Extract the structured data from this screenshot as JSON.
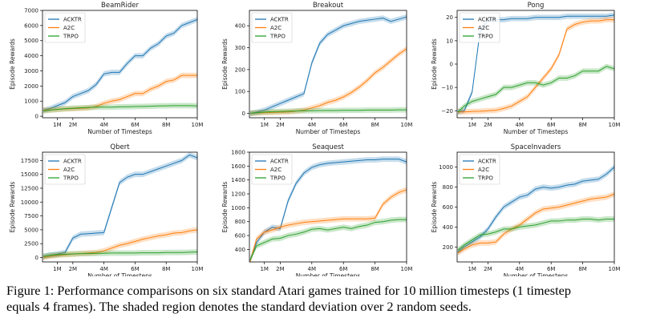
{
  "colors": {
    "ACKTR": "#1f77b4",
    "A2C": "#ff7f0e",
    "TRPO": "#2ca02c"
  },
  "caption": {
    "line1": "Figure 1: Performance comparisons on six standard Atari games trained for 10 million timesteps (1 timestep",
    "line2": "equals 4 frames). The shaded region denotes the standard deviation over 2 random seeds."
  },
  "chart_data": [
    {
      "type": "line",
      "title": "BeamRider",
      "xlabel": "Number of Timesteps",
      "ylabel": "Episode Rewards",
      "legend": "top-left",
      "grid": false,
      "xlim": [
        0.05,
        10
      ],
      "ylim": [
        -100,
        7000
      ],
      "xticks": [
        {
          "v": 1,
          "label": "1M"
        },
        {
          "v": 2,
          "label": "2M"
        },
        {
          "v": 4,
          "label": "4M"
        },
        {
          "v": 6,
          "label": "6M"
        },
        {
          "v": 8,
          "label": "8M"
        },
        {
          "v": 10,
          "label": "10M"
        }
      ],
      "yticks": [
        {
          "v": 0,
          "label": "0"
        },
        {
          "v": 1000,
          "label": "1000"
        },
        {
          "v": 2000,
          "label": "2000"
        },
        {
          "v": 3000,
          "label": "3000"
        },
        {
          "v": 4000,
          "label": "4000"
        },
        {
          "v": 5000,
          "label": "5000"
        },
        {
          "v": 6000,
          "label": "6000"
        },
        {
          "v": 7000,
          "label": "7000"
        }
      ],
      "x": [
        0.1,
        0.5,
        1,
        1.5,
        2,
        2.5,
        3,
        3.5,
        4,
        4.5,
        5,
        5.5,
        6,
        6.5,
        7,
        7.5,
        8,
        8.5,
        9,
        9.5,
        10
      ],
      "series": [
        {
          "name": "ACKTR",
          "values": [
            400,
            500,
            700,
            900,
            1300,
            1500,
            1700,
            2100,
            2800,
            2900,
            2900,
            3500,
            4000,
            4000,
            4500,
            4800,
            5300,
            5500,
            6000,
            6200,
            6400
          ]
        },
        {
          "name": "A2C",
          "values": [
            400,
            420,
            450,
            480,
            500,
            520,
            550,
            650,
            850,
            1000,
            1100,
            1300,
            1500,
            1500,
            1800,
            2000,
            2300,
            2400,
            2700,
            2700,
            2700
          ]
        },
        {
          "name": "TRPO",
          "values": [
            350,
            400,
            450,
            500,
            530,
            560,
            580,
            600,
            600,
            600,
            620,
            630,
            640,
            650,
            660,
            680,
            690,
            700,
            700,
            700,
            680
          ]
        }
      ]
    },
    {
      "type": "line",
      "title": "Breakout",
      "xlabel": "Number of Timesteps",
      "ylabel": "Episode Rewards",
      "legend": "top-left",
      "grid": false,
      "xlim": [
        0.05,
        10
      ],
      "ylim": [
        -20,
        470
      ],
      "xticks": [
        {
          "v": 1,
          "label": "1M"
        },
        {
          "v": 2,
          "label": "2M"
        },
        {
          "v": 4,
          "label": "4M"
        },
        {
          "v": 6,
          "label": "6M"
        },
        {
          "v": 8,
          "label": "8M"
        },
        {
          "v": 10,
          "label": "10M"
        }
      ],
      "yticks": [
        {
          "v": 0,
          "label": "0"
        },
        {
          "v": 100,
          "label": "100"
        },
        {
          "v": 200,
          "label": "200"
        },
        {
          "v": 300,
          "label": "300"
        },
        {
          "v": 400,
          "label": "400"
        }
      ],
      "x": [
        0.1,
        0.5,
        1,
        1.5,
        2,
        2.5,
        3,
        3.5,
        4,
        4.5,
        5,
        5.5,
        6,
        6.5,
        7,
        7.5,
        8,
        8.5,
        9,
        9.5,
        10
      ],
      "series": [
        {
          "name": "ACKTR",
          "values": [
            0,
            5,
            15,
            30,
            45,
            60,
            75,
            90,
            230,
            320,
            360,
            380,
            400,
            410,
            420,
            425,
            430,
            435,
            420,
            430,
            440
          ]
        },
        {
          "name": "A2C",
          "values": [
            0,
            2,
            3,
            4,
            5,
            6,
            10,
            15,
            25,
            35,
            50,
            60,
            75,
            95,
            120,
            150,
            185,
            210,
            240,
            270,
            295
          ]
        },
        {
          "name": "TRPO",
          "values": [
            0,
            3,
            6,
            8,
            9,
            10,
            11,
            12,
            12,
            13,
            13,
            13,
            14,
            14,
            14,
            15,
            15,
            15,
            15,
            16,
            16
          ]
        }
      ]
    },
    {
      "type": "line",
      "title": "Pong",
      "xlabel": "Number of Timesteps",
      "ylabel": "Episode Rewards",
      "legend": "top-left",
      "grid": false,
      "xlim": [
        0.05,
        10
      ],
      "ylim": [
        -23,
        23
      ],
      "xticks": [
        {
          "v": 1,
          "label": "1M"
        },
        {
          "v": 2,
          "label": "2M"
        },
        {
          "v": 4,
          "label": "4M"
        },
        {
          "v": 6,
          "label": "6M"
        },
        {
          "v": 8,
          "label": "8M"
        },
        {
          "v": 10,
          "label": "10M"
        }
      ],
      "yticks": [
        {
          "v": -20,
          "label": "−20"
        },
        {
          "v": -10,
          "label": "−10"
        },
        {
          "v": 0,
          "label": "0"
        },
        {
          "v": 10,
          "label": "10"
        },
        {
          "v": 20,
          "label": "20"
        }
      ],
      "x": [
        0.1,
        0.5,
        1,
        1.5,
        2,
        2.5,
        3,
        3.5,
        4,
        4.5,
        5,
        5.5,
        6,
        6.5,
        7,
        7.5,
        8,
        8.5,
        9,
        9.5,
        10
      ],
      "series": [
        {
          "name": "ACKTR",
          "values": [
            -20.5,
            -20,
            -12,
            14,
            19,
            19,
            19,
            19.5,
            19.5,
            19.5,
            20,
            20,
            20,
            20,
            20.5,
            20.5,
            20.5,
            20.5,
            20.5,
            20.5,
            21
          ]
        },
        {
          "name": "A2C",
          "values": [
            -20.5,
            -20.5,
            -20.3,
            -20.2,
            -20,
            -19.8,
            -19,
            -18,
            -16,
            -14,
            -10,
            -6,
            -2,
            4,
            15,
            17,
            18,
            18.5,
            18.5,
            19,
            19
          ]
        },
        {
          "name": "TRPO",
          "values": [
            -20.5,
            -18,
            -16,
            -15,
            -14,
            -13,
            -10,
            -10,
            -9,
            -8,
            -8,
            -9,
            -8,
            -6,
            -6,
            -5,
            -3,
            -3,
            -3,
            -1,
            -2
          ]
        }
      ]
    },
    {
      "type": "line",
      "title": "Qbert",
      "xlabel": "Number of Timesteps",
      "ylabel": "Episode Rewards",
      "legend": "top-left",
      "grid": false,
      "xlim": [
        0.05,
        10
      ],
      "ylim": [
        -800,
        19000
      ],
      "xticks": [
        {
          "v": 1,
          "label": "1M"
        },
        {
          "v": 2,
          "label": "2M"
        },
        {
          "v": 4,
          "label": "4M"
        },
        {
          "v": 6,
          "label": "6M"
        },
        {
          "v": 8,
          "label": "8M"
        },
        {
          "v": 10,
          "label": "10M"
        }
      ],
      "yticks": [
        {
          "v": 0,
          "label": "0"
        },
        {
          "v": 2500,
          "label": "2500"
        },
        {
          "v": 5000,
          "label": "5000"
        },
        {
          "v": 7500,
          "label": "7500"
        },
        {
          "v": 10000,
          "label": "10000"
        },
        {
          "v": 12500,
          "label": "12500"
        },
        {
          "v": 15000,
          "label": "15000"
        },
        {
          "v": 17500,
          "label": "17500"
        }
      ],
      "x": [
        0.1,
        0.5,
        1,
        1.5,
        2,
        2.5,
        3,
        3.5,
        4,
        4.5,
        5,
        5.5,
        6,
        6.5,
        7,
        7.5,
        8,
        8.5,
        9,
        9.5,
        10
      ],
      "series": [
        {
          "name": "ACKTR",
          "values": [
            200,
            400,
            600,
            900,
            3500,
            4200,
            4300,
            4400,
            4500,
            9000,
            13500,
            14500,
            15000,
            15000,
            15500,
            16000,
            16500,
            17000,
            17500,
            18500,
            18000
          ]
        },
        {
          "name": "A2C",
          "values": [
            0,
            200,
            400,
            500,
            600,
            700,
            800,
            900,
            1200,
            1700,
            2200,
            2500,
            2900,
            3300,
            3600,
            3900,
            4100,
            4400,
            4500,
            4800,
            5000
          ]
        },
        {
          "name": "TRPO",
          "values": [
            200,
            400,
            500,
            600,
            650,
            700,
            700,
            750,
            750,
            800,
            800,
            800,
            800,
            850,
            850,
            850,
            900,
            900,
            900,
            950,
            1000
          ]
        }
      ]
    },
    {
      "type": "line",
      "title": "Seaquest",
      "xlabel": "Number of Timesteps",
      "ylabel": "Episode Rewards",
      "legend": "top-left",
      "grid": false,
      "xlim": [
        0.05,
        10
      ],
      "ylim": [
        220,
        1800
      ],
      "xticks": [
        {
          "v": 1,
          "label": "1M"
        },
        {
          "v": 2,
          "label": "2M"
        },
        {
          "v": 4,
          "label": "4M"
        },
        {
          "v": 6,
          "label": "6M"
        },
        {
          "v": 8,
          "label": "8M"
        },
        {
          "v": 10,
          "label": "10M"
        }
      ],
      "yticks": [
        {
          "v": 400,
          "label": "400"
        },
        {
          "v": 600,
          "label": "600"
        },
        {
          "v": 800,
          "label": "800"
        },
        {
          "v": 1000,
          "label": "1000"
        },
        {
          "v": 1200,
          "label": "1200"
        },
        {
          "v": 1400,
          "label": "1400"
        },
        {
          "v": 1600,
          "label": "1600"
        },
        {
          "v": 1800,
          "label": "1800"
        }
      ],
      "x": [
        0.1,
        0.5,
        1,
        1.5,
        2,
        2.5,
        3,
        3.5,
        4,
        4.5,
        5,
        5.5,
        6,
        6.5,
        7,
        7.5,
        8,
        8.5,
        9,
        9.5,
        10
      ],
      "series": [
        {
          "name": "ACKTR",
          "values": [
            250,
            500,
            650,
            720,
            700,
            1100,
            1350,
            1500,
            1580,
            1620,
            1640,
            1650,
            1660,
            1670,
            1680,
            1690,
            1690,
            1700,
            1700,
            1700,
            1660
          ]
        },
        {
          "name": "A2C",
          "values": [
            230,
            550,
            650,
            680,
            720,
            750,
            770,
            790,
            800,
            810,
            820,
            830,
            840,
            840,
            840,
            840,
            850,
            1050,
            1150,
            1220,
            1260
          ]
        },
        {
          "name": "TRPO",
          "values": [
            250,
            450,
            500,
            550,
            560,
            600,
            620,
            650,
            690,
            700,
            680,
            700,
            720,
            700,
            730,
            750,
            790,
            800,
            820,
            830,
            830
          ]
        }
      ]
    },
    {
      "type": "line",
      "title": "SpaceInvaders",
      "xlabel": "Number of Timesteps",
      "ylabel": "Episode Rewards",
      "legend": "top-left",
      "grid": false,
      "xlim": [
        0.05,
        10
      ],
      "ylim": [
        50,
        1150
      ],
      "xticks": [
        {
          "v": 1,
          "label": "1M"
        },
        {
          "v": 2,
          "label": "2M"
        },
        {
          "v": 4,
          "label": "4M"
        },
        {
          "v": 6,
          "label": "6M"
        },
        {
          "v": 8,
          "label": "8M"
        },
        {
          "v": 10,
          "label": "10M"
        }
      ],
      "yticks": [
        {
          "v": 200,
          "label": "200"
        },
        {
          "v": 400,
          "label": "400"
        },
        {
          "v": 600,
          "label": "600"
        },
        {
          "v": 800,
          "label": "800"
        },
        {
          "v": 1000,
          "label": "1000"
        }
      ],
      "x": [
        0.1,
        0.5,
        1,
        1.5,
        2,
        2.5,
        3,
        3.5,
        4,
        4.5,
        5,
        5.5,
        6,
        6.5,
        7,
        7.5,
        8,
        8.5,
        9,
        9.5,
        10
      ],
      "series": [
        {
          "name": "ACKTR",
          "values": [
            150,
            200,
            250,
            300,
            380,
            500,
            600,
            650,
            700,
            720,
            780,
            800,
            790,
            800,
            820,
            830,
            860,
            870,
            880,
            930,
            1000
          ]
        },
        {
          "name": "A2C",
          "values": [
            140,
            180,
            220,
            240,
            240,
            250,
            330,
            380,
            420,
            480,
            540,
            580,
            590,
            600,
            620,
            640,
            660,
            680,
            690,
            700,
            730
          ]
        },
        {
          "name": "TRPO",
          "values": [
            170,
            220,
            270,
            320,
            330,
            350,
            380,
            380,
            400,
            410,
            420,
            440,
            460,
            460,
            470,
            470,
            480,
            480,
            470,
            480,
            480
          ]
        }
      ]
    }
  ]
}
